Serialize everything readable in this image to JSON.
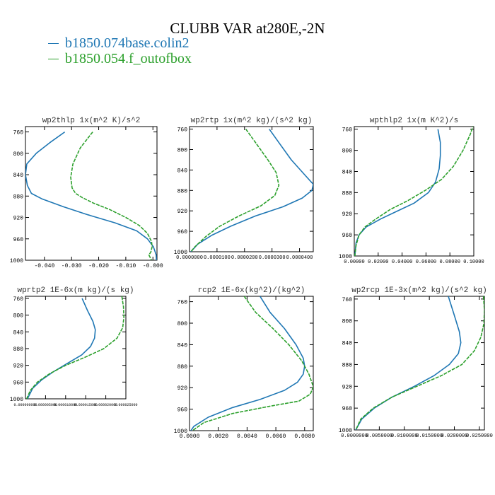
{
  "figure": {
    "title": "CLUBB VAR at280E,-2N",
    "legend": [
      {
        "label": "b1850.074base.colin2",
        "color": "#1f77b4"
      },
      {
        "label": "b1850.054.f_outofbox",
        "color": "#2ca02c"
      }
    ]
  },
  "chart_data": [
    {
      "type": "line",
      "title": "wp2thlp  1x(m^2 K)/s^2",
      "xlim": [
        -0.047,
        0.0015
      ],
      "ylim": [
        1000,
        750
      ],
      "y_invert": true,
      "xticks": [
        "-0.040",
        "-0.030",
        "-0.020",
        "-0.010",
        "-0.000"
      ],
      "xtick_values": [
        -0.04,
        -0.03,
        -0.02,
        -0.01,
        0.0
      ],
      "yticks": [
        760,
        800,
        840,
        880,
        920,
        960,
        1000
      ],
      "series": [
        {
          "color": "#1f77b4",
          "style": "solid",
          "points": [
            [
              -0.0325,
              760
            ],
            [
              -0.038,
              780
            ],
            [
              -0.043,
              800
            ],
            [
              -0.0465,
              820
            ],
            [
              -0.047,
              840
            ],
            [
              -0.0463,
              860
            ],
            [
              -0.0448,
              875
            ],
            [
              -0.041,
              885
            ],
            [
              -0.033,
              900
            ],
            [
              -0.024,
              915
            ],
            [
              -0.014,
              930
            ],
            [
              -0.006,
              945
            ],
            [
              -0.002,
              960
            ],
            [
              0.0002,
              975
            ],
            [
              0.0012,
              990
            ],
            [
              0.0013,
              1000
            ]
          ]
        },
        {
          "color": "#2ca02c",
          "style": "dashed",
          "points": [
            [
              -0.0222,
              760
            ],
            [
              -0.0268,
              790
            ],
            [
              -0.0295,
              820
            ],
            [
              -0.0303,
              845
            ],
            [
              -0.0298,
              865
            ],
            [
              -0.0285,
              875
            ],
            [
              -0.026,
              883
            ],
            [
              -0.022,
              893
            ],
            [
              -0.016,
              905
            ],
            [
              -0.01,
              920
            ],
            [
              -0.005,
              935
            ],
            [
              -0.002,
              950
            ],
            [
              -0.0005,
              965
            ],
            [
              -0.0003,
              975
            ],
            [
              -0.0008,
              985
            ],
            [
              -0.0015,
              990
            ],
            [
              -0.0005,
              1000
            ]
          ]
        }
      ]
    },
    {
      "type": "line",
      "title": "wp2rtp  1x(m^2 kg)/(s^2 kg)",
      "xlim": [
        0.0,
        4.5e-05
      ],
      "ylim": [
        1000,
        755
      ],
      "y_invert": true,
      "xticks": [
        "0.0000000",
        "0.0000100",
        "0.0000200",
        "0.0000300",
        "0.0000400"
      ],
      "xtick_values": [
        0.0,
        1e-05,
        2e-05,
        3e-05,
        4e-05
      ],
      "yticks": [
        760,
        800,
        840,
        880,
        920,
        960,
        1000
      ],
      "series": [
        {
          "color": "#1f77b4",
          "style": "solid",
          "points": [
            [
              2.9e-05,
              760
            ],
            [
              3.3e-05,
              790
            ],
            [
              3.7e-05,
              820
            ],
            [
              4.2e-05,
              850
            ],
            [
              4.5e-05,
              868
            ],
            [
              4.45e-05,
              880
            ],
            [
              4.1e-05,
              895
            ],
            [
              3.4e-05,
              912
            ],
            [
              2.4e-05,
              930
            ],
            [
              1.5e-05,
              950
            ],
            [
              8e-06,
              968
            ],
            [
              3e-06,
              985
            ],
            [
              5e-07,
              1000
            ]
          ]
        },
        {
          "color": "#2ca02c",
          "style": "dashed",
          "points": [
            [
              2.05e-05,
              760
            ],
            [
              2.45e-05,
              790
            ],
            [
              2.85e-05,
              820
            ],
            [
              3.15e-05,
              845
            ],
            [
              3.25e-05,
              870
            ],
            [
              3.1e-05,
              890
            ],
            [
              2.6e-05,
              910
            ],
            [
              1.8e-05,
              930
            ],
            [
              1.1e-05,
              950
            ],
            [
              6e-06,
              970
            ],
            [
              2e-06,
              990
            ],
            [
              5e-07,
              1000
            ]
          ]
        }
      ]
    },
    {
      "type": "line",
      "title": "wpthlp2  1x(m K^2)/s",
      "xlim": [
        0.0,
        0.1
      ],
      "ylim": [
        1000,
        755
      ],
      "y_invert": true,
      "xticks": [
        "0.00000",
        "0.02000",
        "0.04000",
        "0.06000",
        "0.08000",
        "0.10000"
      ],
      "xtick_values": [
        0.0,
        0.02,
        0.04,
        0.06,
        0.08,
        0.1
      ],
      "yticks": [
        760,
        800,
        840,
        880,
        920,
        960,
        1000
      ],
      "series": [
        {
          "color": "#1f77b4",
          "style": "solid",
          "points": [
            [
              0.07,
              760
            ],
            [
              0.072,
              785
            ],
            [
              0.072,
              810
            ],
            [
              0.071,
              835
            ],
            [
              0.068,
              860
            ],
            [
              0.062,
              880
            ],
            [
              0.05,
              900
            ],
            [
              0.036,
              915
            ],
            [
              0.022,
              930
            ],
            [
              0.01,
              945
            ],
            [
              0.004,
              960
            ],
            [
              0.0015,
              975
            ],
            [
              0.0005,
              1000
            ]
          ]
        },
        {
          "color": "#2ca02c",
          "style": "dashed",
          "points": [
            [
              0.1,
              750
            ],
            [
              0.097,
              770
            ],
            [
              0.091,
              800
            ],
            [
              0.083,
              830
            ],
            [
              0.073,
              855
            ],
            [
              0.06,
              875
            ],
            [
              0.045,
              895
            ],
            [
              0.03,
              912
            ],
            [
              0.018,
              930
            ],
            [
              0.009,
              945
            ],
            [
              0.004,
              960
            ],
            [
              0.0015,
              980
            ],
            [
              0.0005,
              1000
            ]
          ]
        }
      ]
    },
    {
      "type": "line",
      "title": "wprtp2  1E-6x(m kg)/(s kg)",
      "xlim": [
        0.0,
        2.5e-05
      ],
      "ylim": [
        1000,
        755
      ],
      "y_invert": true,
      "xticks": [
        "0.000000000",
        "0.000005000",
        "0.000010000",
        "0.000015000",
        "0.000020000",
        "0.000025000"
      ],
      "xtick_values": [
        0.0,
        5e-06,
        1e-05,
        1.5e-05,
        2e-05,
        2.5e-05
      ],
      "yticks": [
        760,
        800,
        840,
        880,
        920,
        960,
        1000
      ],
      "series": [
        {
          "color": "#1f77b4",
          "style": "solid",
          "points": [
            [
              1.41e-05,
              760
            ],
            [
              1.55e-05,
              790
            ],
            [
              1.68e-05,
              815
            ],
            [
              1.74e-05,
              835
            ],
            [
              1.72e-05,
              855
            ],
            [
              1.62e-05,
              875
            ],
            [
              1.4e-05,
              895
            ],
            [
              1.05e-05,
              915
            ],
            [
              7e-06,
              935
            ],
            [
              4e-06,
              955
            ],
            [
              1.8e-06,
              975
            ],
            [
              5e-07,
              1000
            ]
          ]
        },
        {
          "color": "#2ca02c",
          "style": "dashed",
          "points": [
            [
              2.4e-05,
              755
            ],
            [
              2.44e-05,
              780
            ],
            [
              2.45e-05,
              805
            ],
            [
              2.42e-05,
              830
            ],
            [
              2.28e-05,
              855
            ],
            [
              1.95e-05,
              880
            ],
            [
              1.5e-05,
              900
            ],
            [
              1e-05,
              920
            ],
            [
              6e-06,
              940
            ],
            [
              3e-06,
              960
            ],
            [
              1.2e-06,
              980
            ],
            [
              3e-07,
              1000
            ]
          ]
        }
      ]
    },
    {
      "type": "line",
      "title": "rcp2  1E-6x(kg^2)/(kg^2)",
      "xlim": [
        0.0,
        0.0086
      ],
      "ylim": [
        1000,
        750
      ],
      "y_invert": true,
      "xticks": [
        "0.0000",
        "0.0020",
        "0.0040",
        "0.0060",
        "0.0080"
      ],
      "xtick_values": [
        0.0,
        0.002,
        0.004,
        0.006,
        0.008
      ],
      "yticks": [
        760,
        800,
        840,
        880,
        920,
        960,
        1000
      ],
      "series": [
        {
          "color": "#1f77b4",
          "style": "solid",
          "points": [
            [
              0.0049,
              750
            ],
            [
              0.0056,
              780
            ],
            [
              0.0066,
              810
            ],
            [
              0.0074,
              840
            ],
            [
              0.0079,
              865
            ],
            [
              0.008,
              880
            ],
            [
              0.0079,
              895
            ],
            [
              0.0075,
              910
            ],
            [
              0.0066,
              925
            ],
            [
              0.0049,
              942
            ],
            [
              0.003,
              957
            ],
            [
              0.0013,
              975
            ],
            [
              0.0003,
              992
            ],
            [
              0.0001,
              1000
            ]
          ]
        },
        {
          "color": "#2ca02c",
          "style": "dashed",
          "points": [
            [
              0.0038,
              750
            ],
            [
              0.0046,
              780
            ],
            [
              0.0058,
              810
            ],
            [
              0.0069,
              840
            ],
            [
              0.0078,
              870
            ],
            [
              0.0083,
              895
            ],
            [
              0.0086,
              918
            ],
            [
              0.0084,
              932
            ],
            [
              0.0076,
              945
            ],
            [
              0.0055,
              955
            ],
            [
              0.003,
              968
            ],
            [
              0.001,
              985
            ],
            [
              0.0002,
              1000
            ]
          ]
        }
      ]
    },
    {
      "type": "line",
      "title": "wp2rcp  1E-3x(m^2 kg)/(s^2 kg)",
      "xlim": [
        0.0,
        0.026
      ],
      "ylim": [
        1000,
        755
      ],
      "y_invert": true,
      "xticks": [
        "0.0000000",
        "0.0050000",
        "0.0100000",
        "0.0150000",
        "0.0200000",
        "0.0250000"
      ],
      "xtick_values": [
        0.0,
        0.005,
        0.01,
        0.015,
        0.02,
        0.025
      ],
      "yticks": [
        760,
        800,
        840,
        880,
        920,
        960,
        1000
      ],
      "series": [
        {
          "color": "#1f77b4",
          "style": "solid",
          "points": [
            [
              0.0188,
              755
            ],
            [
              0.02,
              790
            ],
            [
              0.021,
              820
            ],
            [
              0.0213,
              840
            ],
            [
              0.0208,
              860
            ],
            [
              0.019,
              880
            ],
            [
              0.016,
              900
            ],
            [
              0.012,
              920
            ],
            [
              0.0075,
              940
            ],
            [
              0.004,
              960
            ],
            [
              0.0015,
              980
            ],
            [
              0.0003,
              1000
            ]
          ]
        },
        {
          "color": "#2ca02c",
          "style": "dashed",
          "points": [
            [
              0.0258,
              755
            ],
            [
              0.026,
              780
            ],
            [
              0.0259,
              805
            ],
            [
              0.0253,
              830
            ],
            [
              0.024,
              855
            ],
            [
              0.0215,
              880
            ],
            [
              0.0175,
              900
            ],
            [
              0.0125,
              920
            ],
            [
              0.0075,
              940
            ],
            [
              0.0038,
              960
            ],
            [
              0.0013,
              980
            ],
            [
              0.0003,
              1000
            ]
          ]
        }
      ]
    }
  ]
}
